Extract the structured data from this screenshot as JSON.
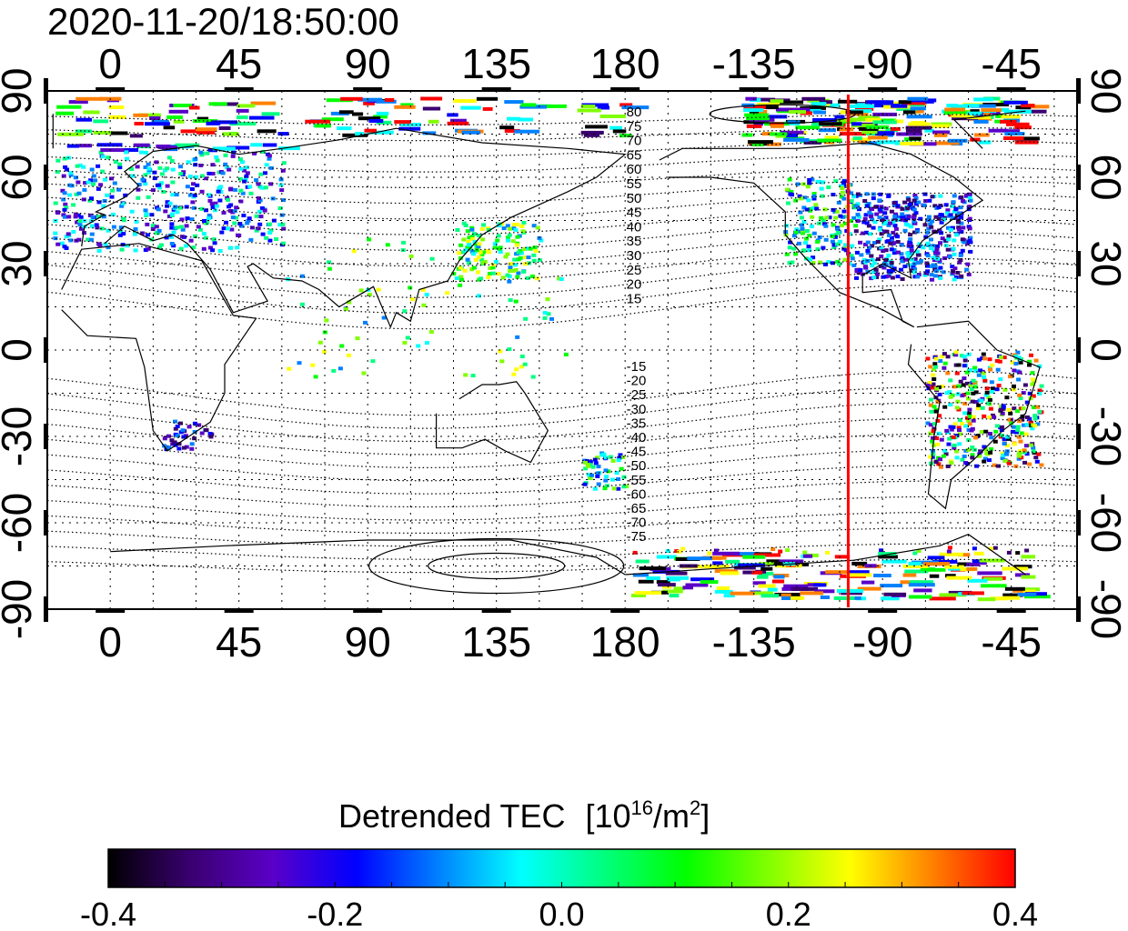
{
  "title": "2020-11-20/18:50:00",
  "map": {
    "lon_ticks_top": [
      "0",
      "45",
      "90",
      "135",
      "180",
      "-135",
      "-90",
      "-45"
    ],
    "lon_ticks_bottom": [
      "0",
      "45",
      "90",
      "135",
      "180",
      "-135",
      "-90",
      "-45"
    ],
    "lat_ticks_left": [
      "90",
      "60",
      "30",
      "0",
      "-30",
      "-60",
      "-90"
    ],
    "lat_ticks_right": [
      "90",
      "60",
      "30",
      "0",
      "-30",
      "-60",
      "-90"
    ],
    "terminator_lon": -102,
    "terminator_color": "#ff0000",
    "contour_labels_north": [
      "80",
      "75",
      "70",
      "65",
      "60",
      "55",
      "50",
      "45",
      "40",
      "35",
      "30",
      "25",
      "20",
      "15"
    ],
    "contour_labels_south": [
      "-15",
      "-20",
      "-25",
      "-30",
      "-35",
      "-40",
      "-45",
      "-50",
      "-55",
      "-60",
      "-65",
      "-70",
      "-75"
    ]
  },
  "colorbar": {
    "title": "Detrended TEC",
    "unit_prefix": "[10",
    "unit_exp": "16",
    "unit_mid": "/m",
    "unit_exp2": "2",
    "unit_suffix": "]",
    "tick_labels": [
      "-0.4",
      "-0.2",
      "0.0",
      "0.2",
      "0.4"
    ],
    "stops": [
      "#000000",
      "#3a0070",
      "#5a00c8",
      "#0000ff",
      "#0080ff",
      "#00ffff",
      "#00ff80",
      "#00ff00",
      "#80ff00",
      "#ffff00",
      "#ff8000",
      "#ff0000"
    ]
  }
}
